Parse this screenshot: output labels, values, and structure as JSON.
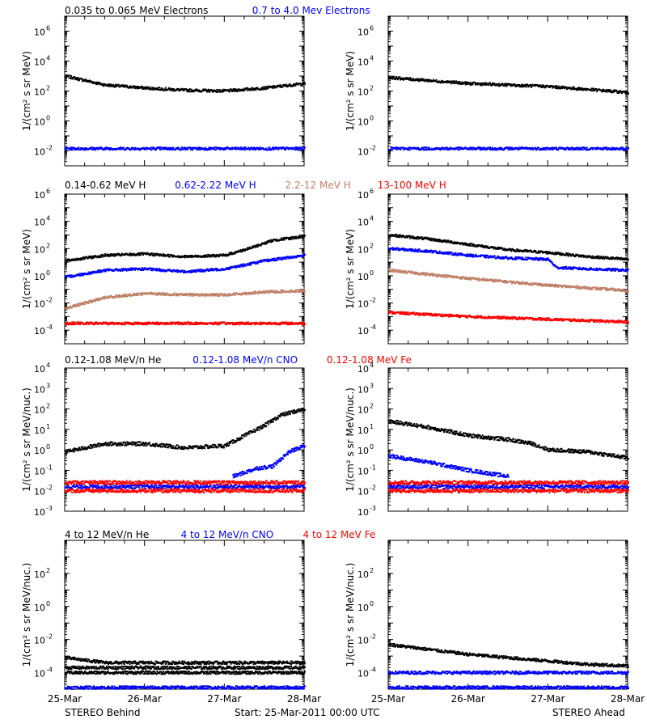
{
  "colors": {
    "black": "#000000",
    "blue": "#0000ff",
    "tan": "#c08068",
    "red": "#ff0000"
  },
  "footer": {
    "left": "STEREO Behind",
    "center": "Start: 25-Mar-2011 00:00 UTC",
    "right": "STEREO Ahead"
  },
  "x_ticks": [
    "25-Mar",
    "26-Mar",
    "27-Mar",
    "28-Mar"
  ],
  "chart_data": [
    {
      "type": "scatter",
      "row_title": [
        {
          "text": "0.035 to 0.065 MeV Electrons",
          "color": "#000000"
        },
        {
          "text": "0.7 to 4.0 Mev Electrons",
          "color": "#0000ff"
        }
      ],
      "ylabel": "1/(cm² s sr MeV)",
      "yscale": "log",
      "ylim_exp": [
        -3,
        7
      ],
      "ytick_labels": [
        "10^-2",
        "10^0",
        "10^2",
        "10^4",
        "10^6"
      ],
      "xlim": [
        "25-Mar",
        "28-Mar"
      ],
      "panels": [
        {
          "name": "STEREO Behind",
          "series": [
            {
              "color": "#000000",
              "x_days": [
                0,
                0.5,
                1.0,
                1.5,
                2.0,
                2.5,
                3.0
              ],
              "log10": [
                3.0,
                2.4,
                2.2,
                2.05,
                2.0,
                2.2,
                2.5
              ]
            },
            {
              "color": "#0000ff",
              "x_days": [
                0,
                3.0
              ],
              "log10": [
                -1.85,
                -1.85
              ]
            }
          ]
        },
        {
          "name": "STEREO Ahead",
          "series": [
            {
              "color": "#000000",
              "x_days": [
                0,
                1.0,
                2.0,
                3.0
              ],
              "log10": [
                2.9,
                2.5,
                2.3,
                1.9
              ]
            },
            {
              "color": "#0000ff",
              "x_days": [
                0,
                3.0
              ],
              "log10": [
                -1.85,
                -1.85
              ]
            }
          ]
        }
      ]
    },
    {
      "type": "scatter",
      "row_title": [
        {
          "text": "0.14-0.62 MeV H",
          "color": "#000000"
        },
        {
          "text": "0.62-2.22 MeV H",
          "color": "#0000ff"
        },
        {
          "text": "2.2-12 MeV H",
          "color": "#c08068"
        },
        {
          "text": "13-100 MeV H",
          "color": "#ff0000"
        }
      ],
      "ylabel": "1/(cm² s sr MeV)",
      "yscale": "log",
      "ylim_exp": [
        -5,
        6
      ],
      "ytick_labels": [
        "10^-4",
        "10^-2",
        "10^0",
        "10^2",
        "10^4",
        "10^6"
      ],
      "xlim": [
        "25-Mar",
        "28-Mar"
      ],
      "panels": [
        {
          "name": "STEREO Behind",
          "series": [
            {
              "color": "#000000",
              "x_days": [
                0,
                0.5,
                1.0,
                1.5,
                2.0,
                2.3,
                2.6,
                3.0
              ],
              "log10": [
                1.1,
                1.5,
                1.6,
                1.4,
                1.5,
                2.0,
                2.6,
                2.9
              ]
            },
            {
              "color": "#0000ff",
              "x_days": [
                0,
                0.5,
                1.0,
                1.5,
                2.0,
                2.5,
                3.0
              ],
              "log10": [
                -0.1,
                0.4,
                0.5,
                0.3,
                0.5,
                1.1,
                1.5
              ]
            },
            {
              "color": "#c08068",
              "x_days": [
                0,
                0.5,
                1.0,
                1.5,
                2.0,
                2.5,
                3.0
              ],
              "log10": [
                -2.4,
                -1.6,
                -1.3,
                -1.4,
                -1.4,
                -1.2,
                -1.1
              ]
            },
            {
              "color": "#ff0000",
              "x_days": [
                0,
                3.0
              ],
              "log10": [
                -3.5,
                -3.5
              ]
            }
          ]
        },
        {
          "name": "STEREO Ahead",
          "series": [
            {
              "color": "#000000",
              "x_days": [
                0,
                0.5,
                1.0,
                1.5,
                2.0,
                2.5,
                3.0
              ],
              "log10": [
                3.0,
                2.7,
                2.3,
                1.9,
                1.7,
                1.4,
                1.2
              ]
            },
            {
              "color": "#0000ff",
              "x_days": [
                0,
                0.5,
                1.0,
                1.5,
                2.0,
                2.1,
                2.5,
                3.0
              ],
              "log10": [
                2.0,
                1.8,
                1.5,
                1.3,
                1.2,
                0.6,
                0.5,
                0.4
              ]
            },
            {
              "color": "#c08068",
              "x_days": [
                0,
                1.0,
                2.0,
                3.0
              ],
              "log10": [
                0.4,
                -0.2,
                -0.7,
                -1.1
              ]
            },
            {
              "color": "#ff0000",
              "x_days": [
                0,
                1.0,
                2.0,
                3.0
              ],
              "log10": [
                -2.7,
                -3.0,
                -3.2,
                -3.4
              ]
            }
          ]
        }
      ]
    },
    {
      "type": "scatter",
      "row_title": [
        {
          "text": "0.12-1.08 MeV/n He",
          "color": "#000000"
        },
        {
          "text": "0.12-1.08 MeV/n CNO",
          "color": "#0000ff"
        },
        {
          "text": "0.12-1.08 MeV Fe",
          "color": "#ff0000"
        }
      ],
      "ylabel": "1/(cm² s sr MeV/nuc.)",
      "yscale": "log",
      "ylim_exp": [
        -3,
        4
      ],
      "ytick_labels": [
        "10^-3",
        "10^-2",
        "10^-1",
        "10^0",
        "10^1",
        "10^2",
        "10^3",
        "10^4"
      ],
      "xlim": [
        "25-Mar",
        "28-Mar"
      ],
      "panels": [
        {
          "name": "STEREO Behind",
          "series": [
            {
              "color": "#000000",
              "x_days": [
                0,
                0.5,
                1.0,
                1.5,
                2.0,
                2.2,
                2.5,
                2.7,
                3.0
              ],
              "log10": [
                -0.1,
                0.3,
                0.3,
                0.1,
                0.2,
                0.6,
                1.2,
                1.7,
                2.0
              ]
            },
            {
              "color": "#0000ff",
              "x_days": [
                2.1,
                2.4,
                2.6,
                2.8,
                3.0
              ],
              "log10": [
                -1.3,
                -0.9,
                -0.8,
                -0.1,
                0.2
              ]
            },
            {
              "color": "#0000ff",
              "x_days": [
                0,
                3.0
              ],
              "log10": [
                -1.8,
                -1.8
              ]
            },
            {
              "color": "#ff0000",
              "x_days": [
                0,
                3.0
              ],
              "log10": [
                -1.6,
                -1.6
              ]
            },
            {
              "color": "#ff0000",
              "x_days": [
                0,
                3.0
              ],
              "log10": [
                -2.0,
                -2.0
              ]
            }
          ]
        },
        {
          "name": "STEREO Ahead",
          "series": [
            {
              "color": "#000000",
              "x_days": [
                0,
                0.5,
                1.0,
                1.5,
                1.8,
                2.0,
                2.5,
                3.0
              ],
              "log10": [
                1.4,
                1.1,
                0.7,
                0.5,
                0.3,
                0.0,
                -0.1,
                -0.4
              ]
            },
            {
              "color": "#0000ff",
              "x_days": [
                0,
                0.5,
                1.0,
                1.5
              ],
              "log10": [
                -0.3,
                -0.6,
                -1.0,
                -1.3
              ]
            },
            {
              "color": "#0000ff",
              "x_days": [
                0,
                3.0
              ],
              "log10": [
                -1.8,
                -1.8
              ]
            },
            {
              "color": "#ff0000",
              "x_days": [
                0,
                3.0
              ],
              "log10": [
                -1.6,
                -1.6
              ]
            },
            {
              "color": "#ff0000",
              "x_days": [
                0,
                3.0
              ],
              "log10": [
                -2.0,
                -2.0
              ]
            }
          ]
        }
      ]
    },
    {
      "type": "scatter",
      "row_title": [
        {
          "text": "4 to 12 MeV/n He",
          "color": "#000000"
        },
        {
          "text": "4 to 12 MeV/n CNO",
          "color": "#0000ff"
        },
        {
          "text": "4 to 12 MeV Fe",
          "color": "#ff0000"
        }
      ],
      "ylabel": "1/(cm² s sr MeV/nuc.)",
      "yscale": "log",
      "ylim_exp": [
        -5,
        4
      ],
      "ytick_labels": [
        "10^-4",
        "10^-2",
        "10^0",
        "10^2"
      ],
      "xlim": [
        "25-Mar",
        "28-Mar"
      ],
      "panels": [
        {
          "name": "STEREO Behind",
          "series": [
            {
              "color": "#000000",
              "x_days": [
                0,
                0.5,
                3.0
              ],
              "log10": [
                -3.1,
                -3.4,
                -3.4
              ]
            },
            {
              "color": "#000000",
              "x_days": [
                0,
                3.0
              ],
              "log10": [
                -3.7,
                -3.7
              ]
            },
            {
              "color": "#000000",
              "x_days": [
                0,
                3.0
              ],
              "log10": [
                -4.0,
                -4.0
              ]
            },
            {
              "color": "#0000ff",
              "x_days": [
                0,
                3.0
              ],
              "log10": [
                -4.9,
                -4.9
              ]
            }
          ]
        },
        {
          "name": "STEREO Ahead",
          "series": [
            {
              "color": "#000000",
              "x_days": [
                0,
                0.5,
                1.0,
                1.5,
                2.0,
                2.5,
                3.0
              ],
              "log10": [
                -2.3,
                -2.6,
                -2.9,
                -3.1,
                -3.3,
                -3.5,
                -3.6
              ]
            },
            {
              "color": "#0000ff",
              "x_days": [
                0,
                3.0
              ],
              "log10": [
                -4.0,
                -4.0
              ]
            },
            {
              "color": "#0000ff",
              "x_days": [
                0,
                3.0
              ],
              "log10": [
                -4.9,
                -4.9
              ]
            }
          ]
        }
      ]
    }
  ]
}
